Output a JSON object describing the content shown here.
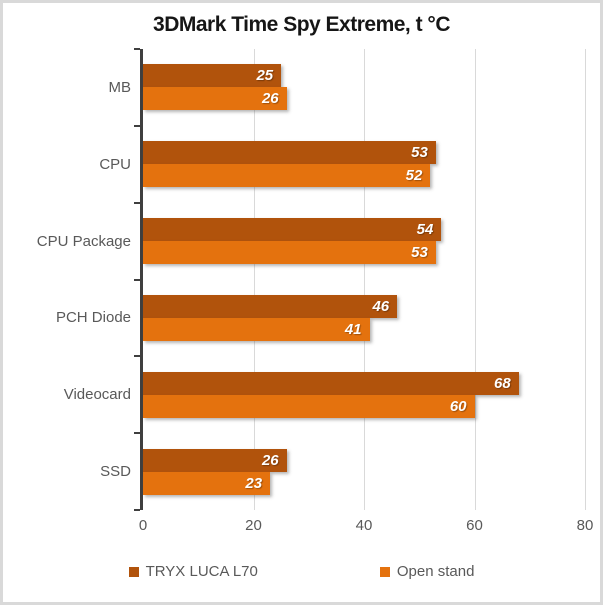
{
  "title": "3DMark Time Spy Extreme, t °C",
  "chart_data": {
    "type": "bar",
    "orientation": "horizontal",
    "title": "3DMark Time Spy Extreme, t °C",
    "categories": [
      "MB",
      "CPU",
      "CPU Package",
      "PCH Diode",
      "Videocard",
      "SSD"
    ],
    "series": [
      {
        "name": "TRYX LUCA L70",
        "color": "#b1530c",
        "values": [
          25,
          53,
          54,
          46,
          68,
          26
        ]
      },
      {
        "name": "Open stand",
        "color": "#e4720e",
        "values": [
          26,
          52,
          53,
          41,
          60,
          23
        ]
      }
    ],
    "xlabel": "",
    "ylabel": "",
    "xlim": [
      0,
      80
    ],
    "xticks": [
      "0",
      "20",
      "40",
      "60",
      "80"
    ],
    "grid": true,
    "legend_position": "bottom"
  },
  "colors": {
    "grid": "#d9d9d9",
    "axis": "#3f3f3f",
    "label_text": "#595959",
    "value_text": "#ffffff",
    "frame_border": "#d9d9d9"
  }
}
